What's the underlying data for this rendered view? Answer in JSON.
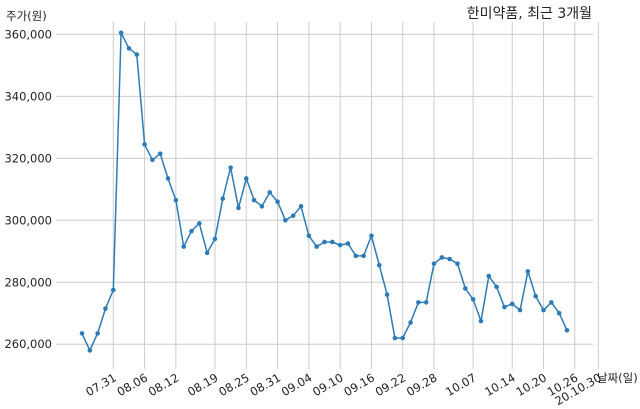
{
  "chart_data": {
    "type": "line",
    "title": "한미약품, 최근 3개월",
    "xlabel": "날짜(일)",
    "ylabel": "주가(원)",
    "ylim": [
      252000,
      364000
    ],
    "yticks": [
      260000,
      280000,
      300000,
      320000,
      340000,
      360000
    ],
    "ytick_labels": [
      "260,000",
      "280,000",
      "300,000",
      "320,000",
      "340,000",
      "360,000"
    ],
    "xtick_labels": [
      "07.31",
      "08.06",
      "08.12",
      "08.19",
      "08.25",
      "08.31",
      "09.04",
      "09.10",
      "09.16",
      "09.22",
      "09.28",
      "10.07",
      "10.14",
      "10.20",
      "10.26",
      "20.10.30"
    ],
    "xtick_positions": [
      4,
      8,
      12,
      17,
      21,
      25,
      29,
      33,
      37,
      41,
      45,
      50,
      55,
      59,
      63,
      66
    ],
    "grid": true,
    "series": [
      {
        "color": "#2c7bb6",
        "values": [
          263500,
          258000,
          263500,
          271500,
          277500,
          360500,
          355500,
          353500,
          324500,
          319500,
          321500,
          313500,
          306500,
          291500,
          296500,
          299000,
          289500,
          294000,
          307000,
          317000,
          304000,
          313500,
          306500,
          304500,
          309000,
          306000,
          300000,
          301500,
          304500,
          295000,
          291500,
          293000,
          293000,
          292000,
          292500,
          288500,
          288500,
          295000,
          285500,
          276000,
          262000,
          262000,
          267000,
          273500,
          273500,
          286000,
          288000,
          287500,
          286000,
          278000,
          274500,
          267500,
          282000,
          278500,
          272000,
          273000,
          271000,
          283500,
          275500,
          271000,
          273500,
          270000,
          264500
        ]
      }
    ]
  }
}
